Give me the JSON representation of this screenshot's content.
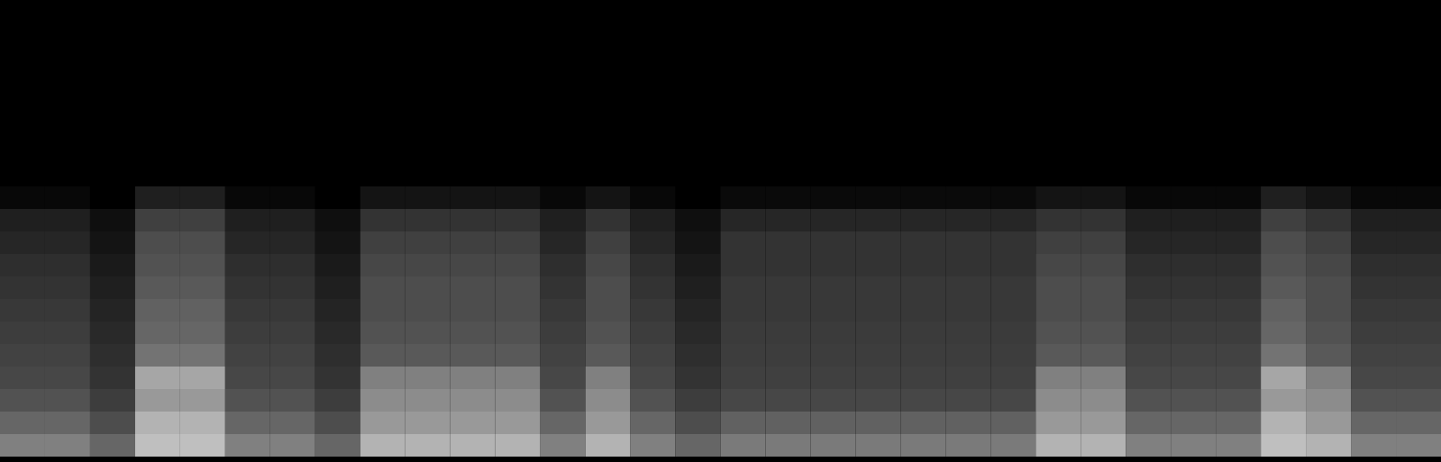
{
  "chart_data": {
    "type": "heatmap",
    "tick_labels": false,
    "zlim": [
      0,
      1
    ],
    "cells": [
      [
        0,
        0,
        0,
        0,
        0,
        0,
        0,
        0,
        0,
        0,
        0,
        0,
        0,
        0,
        0,
        0,
        0,
        0,
        0,
        0,
        0,
        0,
        0,
        0,
        0,
        0,
        0,
        0,
        0,
        0,
        0,
        0
      ],
      [
        0,
        0,
        0,
        0,
        0,
        0,
        0,
        0,
        0,
        0,
        0,
        0,
        0,
        0,
        0,
        0,
        0,
        0,
        0,
        0,
        0,
        0,
        0,
        0,
        0,
        0,
        0,
        0,
        0,
        0,
        0,
        0
      ],
      [
        0,
        0,
        0,
        0,
        0,
        0,
        0,
        0,
        0,
        0,
        0,
        0,
        0,
        0,
        0,
        0,
        0,
        0,
        0,
        0,
        0,
        0,
        0,
        0,
        0,
        0,
        0,
        0,
        0,
        0,
        0,
        0
      ],
      [
        0,
        0,
        0,
        0,
        0,
        0,
        0,
        0,
        0,
        0,
        0,
        0,
        0,
        0,
        0,
        0,
        0,
        0,
        0,
        0,
        0,
        0,
        0,
        0,
        0,
        0,
        0,
        0,
        0,
        0,
        0,
        0
      ],
      [
        0,
        0,
        0,
        0,
        0,
        0,
        0,
        0,
        0,
        0,
        0,
        0,
        0,
        0,
        0,
        0,
        0,
        0,
        0,
        0,
        0,
        0,
        0,
        0,
        0,
        0,
        0,
        0,
        0,
        0,
        0,
        0
      ],
      [
        0,
        0,
        0,
        0,
        0,
        0,
        0,
        0,
        0,
        0,
        0,
        0,
        0,
        0,
        0,
        0,
        0,
        0,
        0,
        0,
        0,
        0,
        0,
        0,
        0,
        0,
        0,
        0,
        0,
        0,
        0,
        0
      ],
      [
        0,
        0,
        0,
        0,
        0,
        0,
        0,
        0,
        0,
        0,
        0,
        0,
        0,
        0,
        0,
        0,
        0,
        0,
        0,
        0,
        0,
        0,
        0,
        0,
        0,
        0,
        0,
        0,
        0,
        0,
        0,
        0
      ],
      [
        0,
        0,
        0,
        0,
        0,
        0,
        0,
        0,
        0,
        0,
        0,
        0,
        0,
        0,
        0,
        0,
        0,
        0,
        0,
        0,
        0,
        0,
        0,
        0,
        0,
        0,
        0,
        0,
        0,
        0,
        0,
        0
      ],
      [
        0.03,
        0.03,
        0,
        0.12,
        0.12,
        0.03,
        0.03,
        0,
        0.08,
        0.08,
        0.08,
        0.08,
        0.03,
        0.08,
        0.03,
        0,
        0.04,
        0.04,
        0.04,
        0.04,
        0.04,
        0.04,
        0.04,
        0.08,
        0.08,
        0.03,
        0.03,
        0.03,
        0.12,
        0.08,
        0.03,
        0.03
      ],
      [
        0.12,
        0.12,
        0.06,
        0.25,
        0.25,
        0.12,
        0.12,
        0.06,
        0.2,
        0.2,
        0.2,
        0.2,
        0.12,
        0.2,
        0.12,
        0.06,
        0.15,
        0.15,
        0.15,
        0.15,
        0.15,
        0.15,
        0.15,
        0.2,
        0.2,
        0.12,
        0.12,
        0.12,
        0.25,
        0.2,
        0.12,
        0.12
      ],
      [
        0.15,
        0.15,
        0.08,
        0.3,
        0.3,
        0.15,
        0.15,
        0.08,
        0.25,
        0.25,
        0.25,
        0.25,
        0.15,
        0.25,
        0.15,
        0.08,
        0.2,
        0.2,
        0.2,
        0.2,
        0.2,
        0.2,
        0.2,
        0.25,
        0.25,
        0.15,
        0.15,
        0.15,
        0.3,
        0.25,
        0.15,
        0.15
      ],
      [
        0.18,
        0.18,
        0.1,
        0.32,
        0.32,
        0.18,
        0.18,
        0.1,
        0.28,
        0.28,
        0.28,
        0.28,
        0.18,
        0.28,
        0.18,
        0.1,
        0.2,
        0.2,
        0.2,
        0.2,
        0.2,
        0.2,
        0.2,
        0.28,
        0.28,
        0.18,
        0.18,
        0.18,
        0.32,
        0.28,
        0.18,
        0.18
      ],
      [
        0.2,
        0.2,
        0.12,
        0.35,
        0.35,
        0.2,
        0.2,
        0.12,
        0.3,
        0.3,
        0.3,
        0.3,
        0.2,
        0.3,
        0.2,
        0.12,
        0.22,
        0.22,
        0.22,
        0.22,
        0.22,
        0.22,
        0.22,
        0.3,
        0.3,
        0.2,
        0.2,
        0.2,
        0.35,
        0.3,
        0.2,
        0.2
      ],
      [
        0.22,
        0.22,
        0.14,
        0.38,
        0.38,
        0.22,
        0.22,
        0.14,
        0.3,
        0.3,
        0.3,
        0.3,
        0.22,
        0.3,
        0.22,
        0.14,
        0.22,
        0.22,
        0.22,
        0.22,
        0.22,
        0.22,
        0.22,
        0.3,
        0.3,
        0.22,
        0.22,
        0.22,
        0.38,
        0.3,
        0.22,
        0.22
      ],
      [
        0.24,
        0.24,
        0.16,
        0.4,
        0.4,
        0.24,
        0.24,
        0.16,
        0.32,
        0.32,
        0.32,
        0.32,
        0.24,
        0.32,
        0.24,
        0.16,
        0.23,
        0.23,
        0.23,
        0.23,
        0.23,
        0.23,
        0.23,
        0.32,
        0.32,
        0.24,
        0.24,
        0.24,
        0.4,
        0.32,
        0.24,
        0.24
      ],
      [
        0.26,
        0.26,
        0.18,
        0.45,
        0.45,
        0.26,
        0.26,
        0.18,
        0.35,
        0.35,
        0.35,
        0.35,
        0.26,
        0.35,
        0.26,
        0.18,
        0.24,
        0.24,
        0.24,
        0.24,
        0.24,
        0.24,
        0.24,
        0.35,
        0.35,
        0.26,
        0.26,
        0.26,
        0.45,
        0.35,
        0.26,
        0.26
      ],
      [
        0.28,
        0.28,
        0.2,
        0.65,
        0.65,
        0.28,
        0.28,
        0.2,
        0.5,
        0.5,
        0.5,
        0.5,
        0.28,
        0.5,
        0.28,
        0.2,
        0.25,
        0.25,
        0.25,
        0.25,
        0.25,
        0.25,
        0.25,
        0.5,
        0.5,
        0.28,
        0.28,
        0.28,
        0.65,
        0.5,
        0.28,
        0.28
      ],
      [
        0.32,
        0.32,
        0.24,
        0.6,
        0.6,
        0.32,
        0.32,
        0.24,
        0.55,
        0.55,
        0.55,
        0.55,
        0.32,
        0.55,
        0.32,
        0.24,
        0.28,
        0.28,
        0.28,
        0.28,
        0.28,
        0.28,
        0.28,
        0.55,
        0.55,
        0.32,
        0.32,
        0.32,
        0.6,
        0.55,
        0.32,
        0.32
      ],
      [
        0.4,
        0.4,
        0.3,
        0.7,
        0.7,
        0.4,
        0.4,
        0.3,
        0.6,
        0.6,
        0.6,
        0.6,
        0.4,
        0.6,
        0.4,
        0.3,
        0.38,
        0.38,
        0.38,
        0.38,
        0.38,
        0.38,
        0.38,
        0.6,
        0.6,
        0.4,
        0.4,
        0.4,
        0.7,
        0.6,
        0.4,
        0.4
      ],
      [
        0.5,
        0.5,
        0.4,
        0.75,
        0.75,
        0.5,
        0.5,
        0.4,
        0.7,
        0.7,
        0.7,
        0.7,
        0.5,
        0.7,
        0.5,
        0.4,
        0.48,
        0.48,
        0.48,
        0.48,
        0.48,
        0.48,
        0.48,
        0.7,
        0.7,
        0.5,
        0.5,
        0.5,
        0.75,
        0.7,
        0.5,
        0.5
      ]
    ]
  }
}
